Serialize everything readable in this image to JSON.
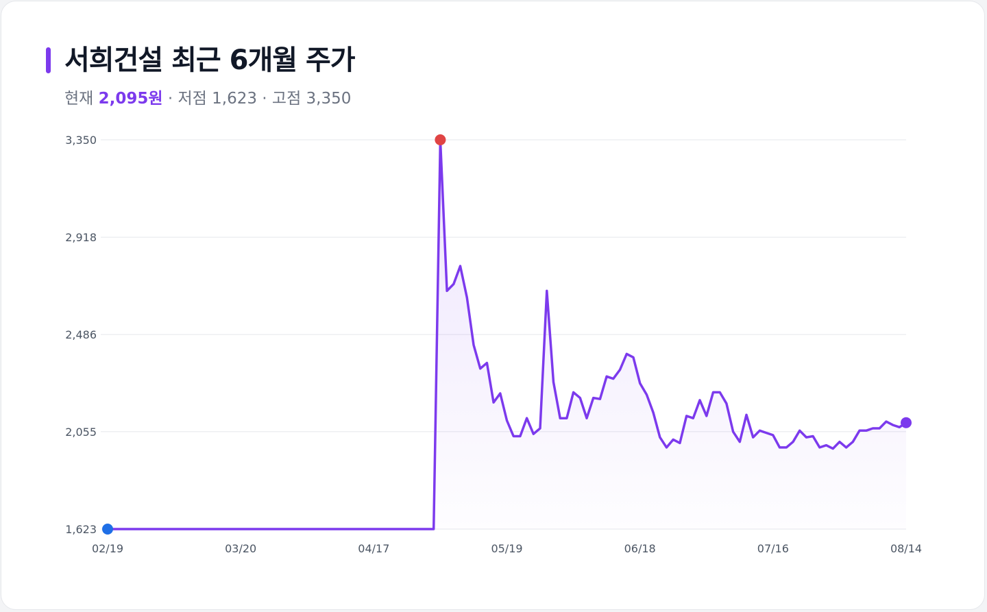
{
  "title": "서희건설 최근 6개월 주가",
  "subtitle": {
    "current_label": "현재",
    "current_value": "2,095원",
    "sep1": " · ",
    "low_text": "저점 1,623",
    "sep2": " · ",
    "high_text": "고점 3,350"
  },
  "colors": {
    "accent": "#7c3aed",
    "line": "#7c3aed",
    "high_marker": "#e04444",
    "start_marker": "#1f6fe6",
    "end_marker": "#7c3aed",
    "grid": "#e5e7eb"
  },
  "chart_data": {
    "type": "line",
    "title": "서희건설 최근 6개월 주가",
    "xlabel": "",
    "ylabel": "",
    "ylim": [
      1623,
      3350
    ],
    "y_ticks": [
      1623,
      2055,
      2486,
      2918,
      3350
    ],
    "y_tick_labels": [
      "1,623",
      "2,055",
      "2,486",
      "2,918",
      "3,350"
    ],
    "x_tick_labels": [
      "02/19",
      "03/20",
      "04/17",
      "05/19",
      "06/18",
      "07/16",
      "08/14"
    ],
    "grid": true,
    "area_fill": true,
    "markers": {
      "start": "low",
      "high": "max",
      "end": "current"
    },
    "series": [
      {
        "values": [
          1623,
          1623,
          1623,
          1623,
          1623,
          1623,
          1623,
          1623,
          1623,
          1623,
          1623,
          1623,
          1623,
          1623,
          1623,
          1623,
          1623,
          1623,
          1623,
          1623,
          1623,
          1623,
          1623,
          1623,
          1623,
          1623,
          1623,
          1623,
          1623,
          1623,
          1623,
          1623,
          1623,
          1623,
          1623,
          1623,
          1623,
          1623,
          1623,
          1623,
          1623,
          1623,
          1623,
          1623,
          1623,
          1623,
          1623,
          1623,
          1623,
          1623,
          3350,
          2680,
          2710,
          2790,
          2650,
          2440,
          2335,
          2360,
          2185,
          2225,
          2105,
          2035,
          2035,
          2115,
          2045,
          2070,
          2680,
          2275,
          2115,
          2115,
          2230,
          2205,
          2115,
          2205,
          2200,
          2300,
          2290,
          2330,
          2400,
          2385,
          2270,
          2220,
          2140,
          2030,
          1985,
          2020,
          2005,
          2125,
          2115,
          2195,
          2125,
          2230,
          2230,
          2180,
          2055,
          2010,
          2130,
          2030,
          2060,
          2050,
          2040,
          1985,
          1985,
          2010,
          2060,
          2030,
          2035,
          1985,
          1995,
          1980,
          2010,
          1985,
          2010,
          2060,
          2060,
          2070,
          2070,
          2100,
          2085,
          2075,
          2095
        ]
      }
    ]
  }
}
